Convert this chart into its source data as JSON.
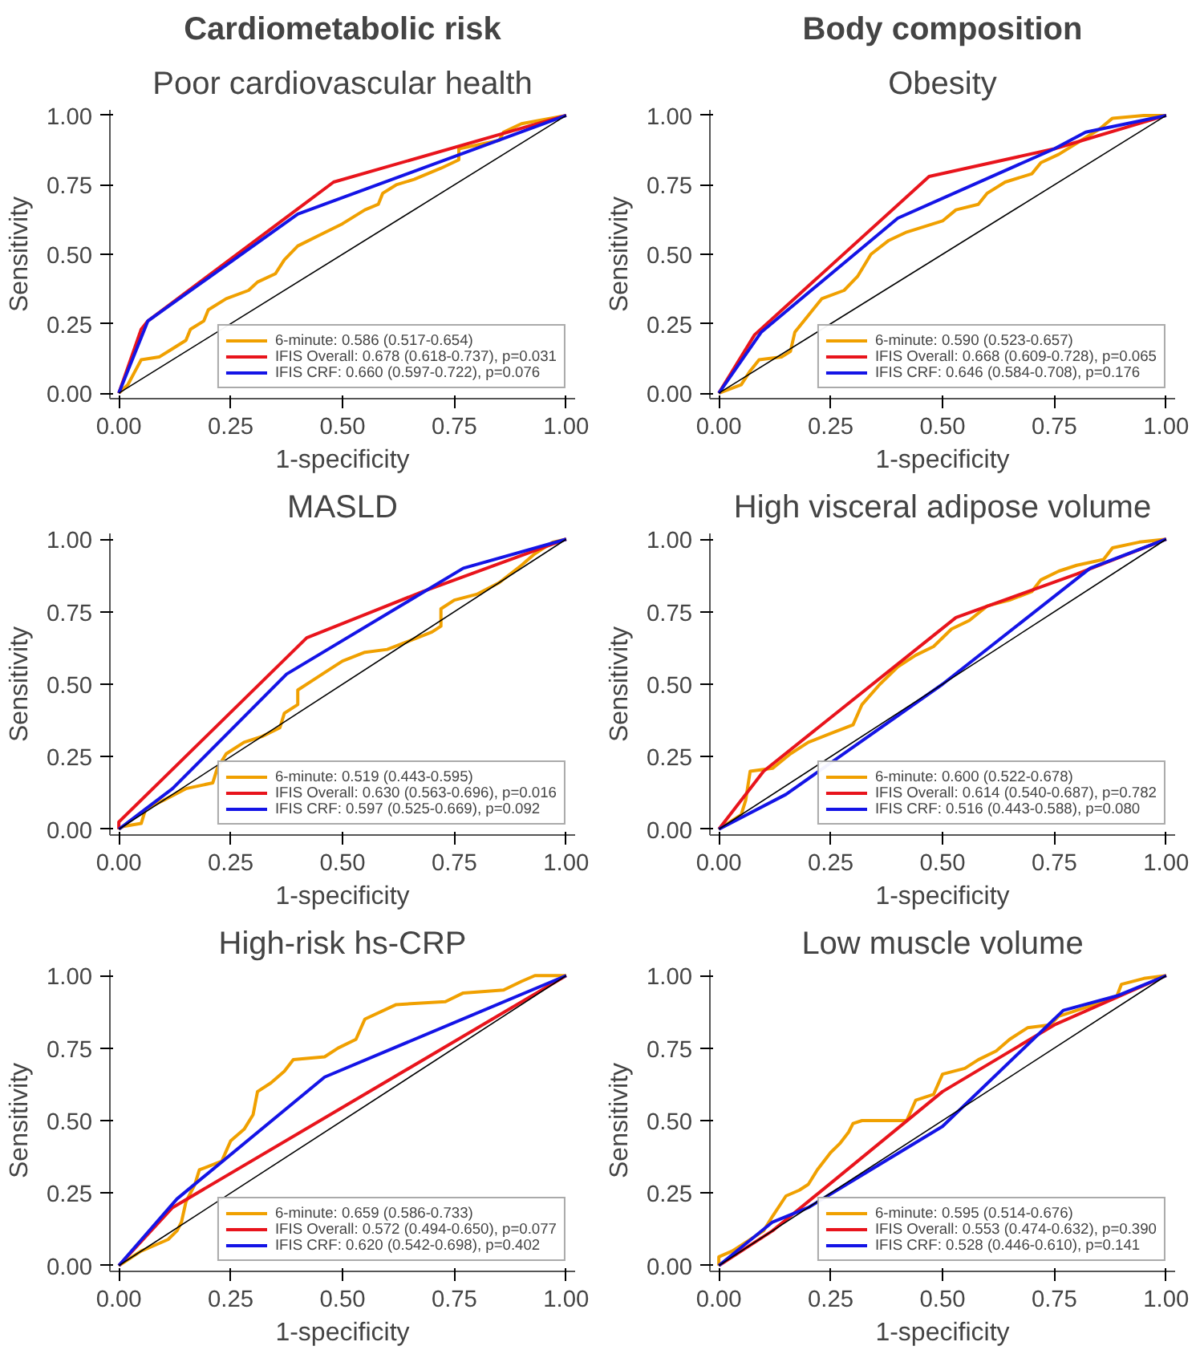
{
  "chart_data": [
    {
      "type": "line",
      "annotations": [
        "Cardiometabolic risk"
      ],
      "title": "Poor cardiovascular health",
      "xlabel": "1-specificity",
      "ylabel": "Sensitivity",
      "xlim": [
        -0.02,
        1.02
      ],
      "ylim": [
        -0.02,
        1.02
      ],
      "xticks": [
        {
          "value": 0,
          "label": "0.00"
        },
        {
          "value": 0.25,
          "label": "0.25"
        },
        {
          "value": 0.5,
          "label": "0.50"
        },
        {
          "value": 0.75,
          "label": "0.75"
        },
        {
          "value": 1,
          "label": "1.00"
        }
      ],
      "yticks": [
        {
          "value": 0,
          "label": "0.00"
        },
        {
          "value": 0.25,
          "label": "0.25"
        },
        {
          "value": 0.5,
          "label": "0.50"
        },
        {
          "value": 0.75,
          "label": "0.75"
        },
        {
          "value": 1,
          "label": "1.00"
        }
      ],
      "legend": "bottom right",
      "series": [
        {
          "color": "#000000",
          "x": [
            0,
            1
          ],
          "values": [
            0,
            1
          ]
        },
        {
          "name": "6-minute: 0.586 (0.517-0.654)",
          "color": "#f0a000",
          "x": [
            0,
            0.02,
            0.04,
            0.05,
            0.09,
            0.12,
            0.15,
            0.16,
            0.19,
            0.2,
            0.24,
            0.29,
            0.31,
            0.35,
            0.37,
            0.4,
            0.45,
            0.5,
            0.55,
            0.58,
            0.59,
            0.62,
            0.66,
            0.72,
            0.76,
            0.76,
            0.85,
            0.86,
            0.9,
            1
          ],
          "values": [
            0,
            0.03,
            0.09,
            0.12,
            0.13,
            0.16,
            0.19,
            0.23,
            0.26,
            0.3,
            0.34,
            0.37,
            0.4,
            0.43,
            0.48,
            0.53,
            0.57,
            0.61,
            0.66,
            0.68,
            0.72,
            0.75,
            0.77,
            0.81,
            0.84,
            0.88,
            0.91,
            0.94,
            0.97,
            1
          ]
        },
        {
          "name": "IFIS Overall: 0.678 (0.618-0.737), p=0.031",
          "color": "#e8141c",
          "x": [
            0,
            0.05,
            0.065,
            0.48,
            1
          ],
          "values": [
            0,
            0.23,
            0.26,
            0.76,
            1
          ]
        },
        {
          "name": "IFIS CRF: 0.660 (0.597-0.722), p=0.076",
          "color": "#1414e6",
          "x": [
            0,
            0.065,
            0.4,
            1
          ],
          "values": [
            0,
            0.26,
            0.645,
            1
          ]
        }
      ]
    },
    {
      "type": "line",
      "annotations": [
        "Body composition"
      ],
      "title": "Obesity",
      "xlabel": "1-specificity",
      "ylabel": "Sensitivity",
      "xlim": [
        -0.02,
        1.02
      ],
      "ylim": [
        -0.02,
        1.02
      ],
      "xticks": [
        {
          "value": 0,
          "label": "0.00"
        },
        {
          "value": 0.25,
          "label": "0.25"
        },
        {
          "value": 0.5,
          "label": "0.50"
        },
        {
          "value": 0.75,
          "label": "0.75"
        },
        {
          "value": 1,
          "label": "1.00"
        }
      ],
      "yticks": [
        {
          "value": 0,
          "label": "0.00"
        },
        {
          "value": 0.25,
          "label": "0.25"
        },
        {
          "value": 0.5,
          "label": "0.50"
        },
        {
          "value": 0.75,
          "label": "0.75"
        },
        {
          "value": 1,
          "label": "1.00"
        }
      ],
      "legend": "bottom right",
      "series": [
        {
          "color": "#000000",
          "x": [
            0,
            1
          ],
          "values": [
            0,
            1
          ]
        },
        {
          "name": "6-minute: 0.590 (0.523-0.657)",
          "color": "#f0a000",
          "x": [
            0,
            0.05,
            0.07,
            0.09,
            0.14,
            0.16,
            0.17,
            0.2,
            0.23,
            0.28,
            0.31,
            0.34,
            0.38,
            0.42,
            0.5,
            0.53,
            0.58,
            0.6,
            0.64,
            0.7,
            0.72,
            0.76,
            0.8,
            0.85,
            0.88,
            0.95,
            1
          ],
          "values": [
            0,
            0.03,
            0.08,
            0.12,
            0.13,
            0.15,
            0.22,
            0.28,
            0.34,
            0.37,
            0.42,
            0.5,
            0.55,
            0.58,
            0.62,
            0.66,
            0.68,
            0.72,
            0.76,
            0.79,
            0.83,
            0.86,
            0.9,
            0.95,
            0.99,
            1,
            1
          ]
        },
        {
          "name": "IFIS Overall: 0.668 (0.609-0.728), p=0.065",
          "color": "#e8141c",
          "x": [
            0,
            0.08,
            0.47,
            0.75,
            1
          ],
          "values": [
            0,
            0.21,
            0.78,
            0.88,
            1
          ]
        },
        {
          "name": "IFIS CRF: 0.646 (0.584-0.708), p=0.176",
          "color": "#1414e6",
          "x": [
            0,
            0.095,
            0.4,
            0.75,
            0.82,
            1
          ],
          "values": [
            0,
            0.22,
            0.63,
            0.88,
            0.94,
            1
          ]
        }
      ]
    },
    {
      "type": "line",
      "title": "MASLD",
      "xlabel": "1-specificity",
      "ylabel": "Sensitivity",
      "xlim": [
        -0.02,
        1.02
      ],
      "ylim": [
        -0.02,
        1.02
      ],
      "xticks": [
        {
          "value": 0,
          "label": "0.00"
        },
        {
          "value": 0.25,
          "label": "0.25"
        },
        {
          "value": 0.5,
          "label": "0.50"
        },
        {
          "value": 0.75,
          "label": "0.75"
        },
        {
          "value": 1,
          "label": "1.00"
        }
      ],
      "yticks": [
        {
          "value": 0,
          "label": "0.00"
        },
        {
          "value": 0.25,
          "label": "0.25"
        },
        {
          "value": 0.5,
          "label": "0.50"
        },
        {
          "value": 0.75,
          "label": "0.75"
        },
        {
          "value": 1,
          "label": "1.00"
        }
      ],
      "legend": "bottom right",
      "series": [
        {
          "color": "#000000",
          "x": [
            0,
            1
          ],
          "values": [
            0,
            1
          ]
        },
        {
          "name": "6-minute: 0.519 (0.443-0.595)",
          "color": "#f0a000",
          "x": [
            0,
            0.01,
            0.05,
            0.06,
            0.1,
            0.15,
            0.21,
            0.22,
            0.24,
            0.28,
            0.32,
            0.36,
            0.37,
            0.4,
            0.4,
            0.43,
            0.47,
            0.5,
            0.55,
            0.6,
            0.65,
            0.7,
            0.72,
            0.72,
            0.75,
            0.8,
            0.85,
            0.9,
            0.93,
            0.97,
            1
          ],
          "values": [
            0,
            0.01,
            0.02,
            0.07,
            0.1,
            0.14,
            0.16,
            0.21,
            0.26,
            0.3,
            0.32,
            0.35,
            0.4,
            0.43,
            0.48,
            0.51,
            0.55,
            0.58,
            0.61,
            0.62,
            0.65,
            0.68,
            0.7,
            0.76,
            0.79,
            0.81,
            0.85,
            0.91,
            0.95,
            0.99,
            1
          ]
        },
        {
          "name": "IFIS Overall: 0.630 (0.563-0.696), p=0.016",
          "color": "#e8141c",
          "x": [
            0,
            0,
            0.42,
            0.68,
            1
          ],
          "values": [
            0,
            0.025,
            0.66,
            0.82,
            1
          ]
        },
        {
          "name": "IFIS CRF: 0.597 (0.525-0.669), p=0.092",
          "color": "#1414e6",
          "x": [
            0,
            0.12,
            0.375,
            0.77,
            1
          ],
          "values": [
            0,
            0.14,
            0.535,
            0.9,
            1
          ]
        }
      ]
    },
    {
      "type": "line",
      "title": "High visceral adipose volume",
      "xlabel": "1-specificity",
      "ylabel": "Sensitivity",
      "xlim": [
        -0.02,
        1.02
      ],
      "ylim": [
        -0.02,
        1.02
      ],
      "xticks": [
        {
          "value": 0,
          "label": "0.00"
        },
        {
          "value": 0.25,
          "label": "0.25"
        },
        {
          "value": 0.5,
          "label": "0.50"
        },
        {
          "value": 0.75,
          "label": "0.75"
        },
        {
          "value": 1,
          "label": "1.00"
        }
      ],
      "yticks": [
        {
          "value": 0,
          "label": "0.00"
        },
        {
          "value": 0.25,
          "label": "0.25"
        },
        {
          "value": 0.5,
          "label": "0.50"
        },
        {
          "value": 0.75,
          "label": "0.75"
        },
        {
          "value": 1,
          "label": "1.00"
        }
      ],
      "legend": "bottom right",
      "series": [
        {
          "color": "#000000",
          "x": [
            0,
            1
          ],
          "values": [
            0,
            1
          ]
        },
        {
          "name": "6-minute: 0.600 (0.522-0.678)",
          "color": "#f0a000",
          "x": [
            0,
            0.05,
            0.06,
            0.07,
            0.12,
            0.16,
            0.2,
            0.25,
            0.3,
            0.32,
            0.36,
            0.4,
            0.44,
            0.48,
            0.52,
            0.56,
            0.6,
            0.65,
            0.7,
            0.72,
            0.76,
            0.8,
            0.86,
            0.88,
            0.94,
            1
          ],
          "values": [
            0,
            0.05,
            0.1,
            0.2,
            0.21,
            0.26,
            0.3,
            0.33,
            0.36,
            0.43,
            0.5,
            0.56,
            0.6,
            0.63,
            0.69,
            0.72,
            0.77,
            0.79,
            0.82,
            0.86,
            0.89,
            0.91,
            0.93,
            0.97,
            0.99,
            1
          ]
        },
        {
          "name": "IFIS Overall: 0.614 (0.540-0.687), p=0.782",
          "color": "#e8141c",
          "x": [
            0,
            0.1,
            0.53,
            0.8,
            1
          ],
          "values": [
            0,
            0.2,
            0.73,
            0.88,
            1
          ]
        },
        {
          "name": "IFIS CRF: 0.516 (0.443-0.588), p=0.080",
          "color": "#1414e6",
          "x": [
            0,
            0.15,
            0.5,
            0.83,
            1
          ],
          "values": [
            0,
            0.12,
            0.5,
            0.9,
            1
          ]
        }
      ]
    },
    {
      "type": "line",
      "title": "High-risk hs-CRP",
      "xlabel": "1-specificity",
      "ylabel": "Sensitivity",
      "xlim": [
        -0.02,
        1.02
      ],
      "ylim": [
        -0.02,
        1.02
      ],
      "xticks": [
        {
          "value": 0,
          "label": "0.00"
        },
        {
          "value": 0.25,
          "label": "0.25"
        },
        {
          "value": 0.5,
          "label": "0.50"
        },
        {
          "value": 0.75,
          "label": "0.75"
        },
        {
          "value": 1,
          "label": "1.00"
        }
      ],
      "yticks": [
        {
          "value": 0,
          "label": "0.00"
        },
        {
          "value": 0.25,
          "label": "0.25"
        },
        {
          "value": 0.5,
          "label": "0.50"
        },
        {
          "value": 0.75,
          "label": "0.75"
        },
        {
          "value": 1,
          "label": "1.00"
        }
      ],
      "legend": "bottom right",
      "series": [
        {
          "color": "#000000",
          "x": [
            0,
            1
          ],
          "values": [
            0,
            1
          ]
        },
        {
          "name": "6-minute: 0.659 (0.586-0.733)",
          "color": "#f0a000",
          "x": [
            0,
            0.02,
            0.05,
            0.08,
            0.11,
            0.13,
            0.14,
            0.15,
            0.17,
            0.18,
            0.23,
            0.25,
            0.28,
            0.3,
            0.31,
            0.34,
            0.37,
            0.39,
            0.46,
            0.49,
            0.53,
            0.55,
            0.62,
            0.73,
            0.77,
            0.86,
            0.9,
            0.93,
            1
          ],
          "values": [
            0,
            0.02,
            0.05,
            0.07,
            0.09,
            0.12,
            0.15,
            0.22,
            0.28,
            0.33,
            0.36,
            0.43,
            0.47,
            0.52,
            0.6,
            0.63,
            0.67,
            0.71,
            0.72,
            0.75,
            0.78,
            0.85,
            0.9,
            0.91,
            0.94,
            0.95,
            0.98,
            1,
            1
          ]
        },
        {
          "name": "IFIS Overall: 0.572 (0.494-0.650), p=0.077",
          "color": "#e8141c",
          "x": [
            0,
            0.12,
            1
          ],
          "values": [
            0,
            0.2,
            1
          ]
        },
        {
          "name": "IFIS CRF: 0.620 (0.542-0.698), p=0.402",
          "color": "#1414e6",
          "x": [
            0,
            0.13,
            0.46,
            1
          ],
          "values": [
            0,
            0.23,
            0.65,
            1
          ]
        }
      ]
    },
    {
      "type": "line",
      "title": "Low muscle volume",
      "xlabel": "1-specificity",
      "ylabel": "Sensitivity",
      "xlim": [
        -0.02,
        1.02
      ],
      "ylim": [
        -0.02,
        1.02
      ],
      "xticks": [
        {
          "value": 0,
          "label": "0.00"
        },
        {
          "value": 0.25,
          "label": "0.25"
        },
        {
          "value": 0.5,
          "label": "0.50"
        },
        {
          "value": 0.75,
          "label": "0.75"
        },
        {
          "value": 1,
          "label": "1.00"
        }
      ],
      "yticks": [
        {
          "value": 0,
          "label": "0.00"
        },
        {
          "value": 0.25,
          "label": "0.25"
        },
        {
          "value": 0.5,
          "label": "0.50"
        },
        {
          "value": 0.75,
          "label": "0.75"
        },
        {
          "value": 1,
          "label": "1.00"
        }
      ],
      "legend": "bottom right",
      "series": [
        {
          "color": "#000000",
          "x": [
            0,
            1
          ],
          "values": [
            0,
            1
          ]
        },
        {
          "name": "6-minute: 0.595 (0.514-0.676)",
          "color": "#f0a000",
          "x": [
            0,
            0,
            0.03,
            0.06,
            0.1,
            0.12,
            0.15,
            0.18,
            0.2,
            0.22,
            0.25,
            0.27,
            0.29,
            0.3,
            0.32,
            0.42,
            0.44,
            0.48,
            0.5,
            0.55,
            0.58,
            0.62,
            0.65,
            0.69,
            0.74,
            0.76,
            0.8,
            0.84,
            0.89,
            0.9,
            0.95,
            1
          ],
          "values": [
            0,
            0.03,
            0.05,
            0.08,
            0.12,
            0.17,
            0.24,
            0.26,
            0.28,
            0.33,
            0.39,
            0.42,
            0.46,
            0.49,
            0.5,
            0.5,
            0.57,
            0.59,
            0.66,
            0.68,
            0.71,
            0.74,
            0.78,
            0.82,
            0.83,
            0.86,
            0.88,
            0.9,
            0.93,
            0.97,
            0.99,
            1
          ]
        },
        {
          "name": "IFIS Overall: 0.553 (0.474-0.632), p=0.390",
          "color": "#e8141c",
          "x": [
            0,
            0.12,
            0.5,
            0.75,
            1
          ],
          "values": [
            0,
            0.12,
            0.6,
            0.83,
            1
          ]
        },
        {
          "name": "IFIS CRF: 0.528 (0.446-0.610), p=0.141",
          "color": "#1414e6",
          "x": [
            0,
            0.12,
            0.2,
            0.5,
            0.77,
            0.89,
            1
          ],
          "values": [
            0,
            0.15,
            0.2,
            0.48,
            0.88,
            0.93,
            1
          ]
        }
      ]
    }
  ]
}
